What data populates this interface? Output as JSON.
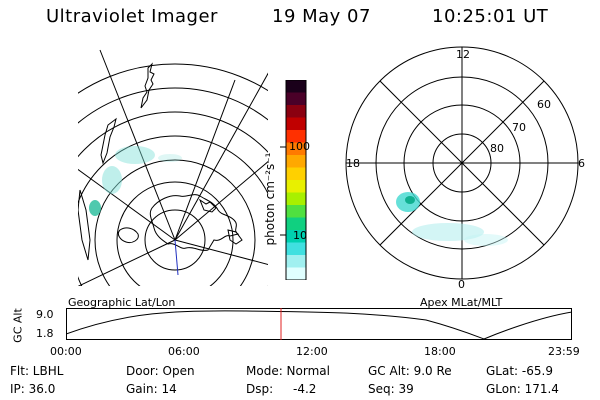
{
  "header": {
    "title": "Ultraviolet Imager",
    "date": "19 May 07",
    "time": "10:25:01 UT"
  },
  "colorbar": {
    "unit_label": "photon cm⁻²s⁻¹",
    "ticks": [
      "100",
      "10"
    ],
    "colors": [
      "#1a001a",
      "#4a0028",
      "#8a0010",
      "#c00000",
      "#ff3000",
      "#ff7a00",
      "#ffa800",
      "#ffd000",
      "#e8f000",
      "#a8f000",
      "#50e040",
      "#10d080",
      "#00d0b0",
      "#40e0e0",
      "#a0f0f0",
      "#e0ffff"
    ]
  },
  "left_panel": {
    "label": "Geographic Lat/Lon",
    "aurora_color": "#7fe0d8"
  },
  "right_panel": {
    "label": "Apex MLat/MLT",
    "mlt_labels": {
      "top": "12",
      "right": "6",
      "bottom": "0",
      "left": "18"
    },
    "lat_labels": [
      "60",
      "70",
      "80"
    ]
  },
  "altitude_plot": {
    "y_title": "GC Alt",
    "y_ticks": [
      "9.0",
      "1.8"
    ],
    "x_ticks": [
      "00:00",
      "06:00",
      "12:00",
      "18:00",
      "23:59"
    ],
    "marker_color": "#e02020"
  },
  "footer": {
    "flt": "Flt: LBHL",
    "ip": "IP: 36.0",
    "door": "Door: Open",
    "gain": "Gain: 14",
    "mode": "Mode: Normal",
    "dsp_label": "Dsp:",
    "dsp_value": "-4.2",
    "gc_alt": "GC Alt: 9.0 Re",
    "seq": "Seq: 39",
    "glat": "GLat: -65.9",
    "glon": "GLon: 171.4"
  }
}
